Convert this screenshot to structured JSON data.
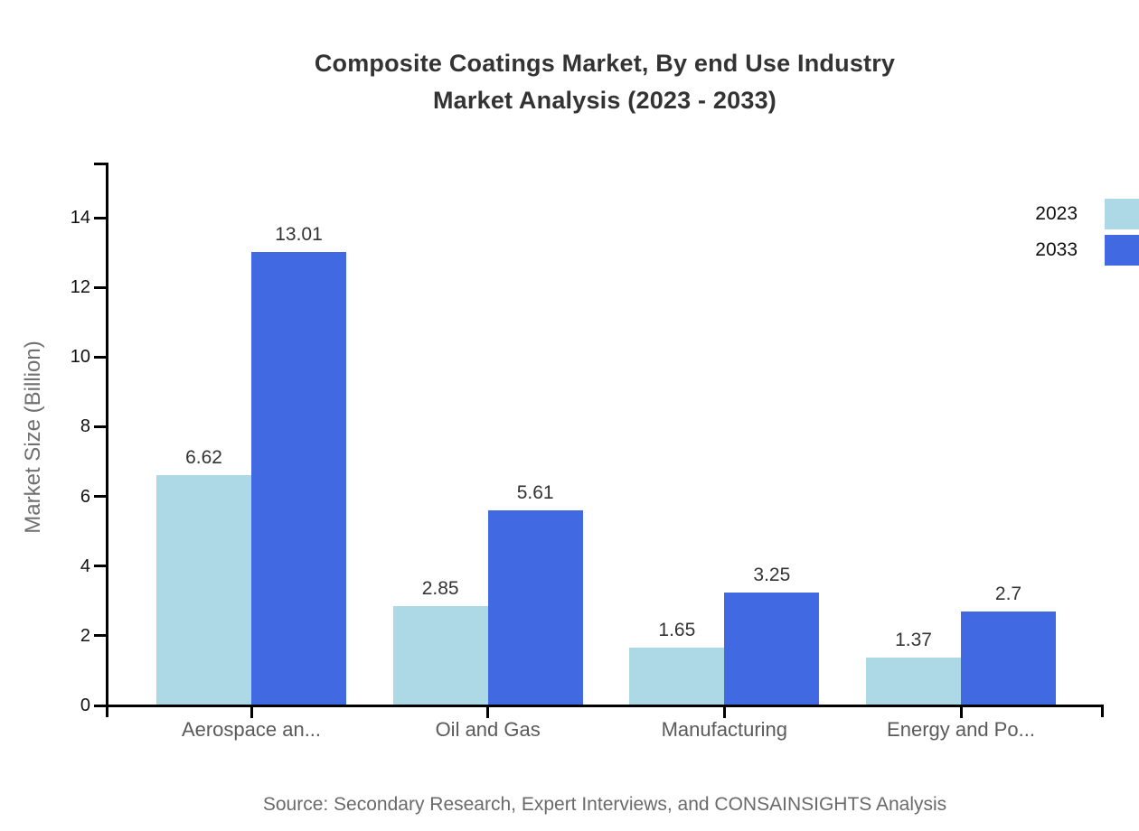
{
  "header": {
    "title_line1": "Composite Coatings Market, By end Use Industry",
    "title_line2": "Market Analysis (2023 - 2033)"
  },
  "source_note": "Source: Secondary Research, Expert Interviews, and CONSAINSIGHTS Analysis",
  "chart_data": {
    "type": "bar",
    "title": "Composite Coatings Market, By end Use Industry Market Analysis (2023 - 2033)",
    "categories": [
      "Aerospace an...",
      "Oil and Gas",
      "Manufacturing",
      "Energy and Po..."
    ],
    "series": [
      {
        "name": "2023",
        "color": "#ADD8E6",
        "values": [
          6.62,
          2.85,
          1.65,
          1.37
        ],
        "labels": [
          "6.62",
          "2.85",
          "1.65",
          "1.37"
        ]
      },
      {
        "name": "2033",
        "color": "#4169E1",
        "values": [
          13.01,
          5.61,
          3.25,
          2.7
        ],
        "labels": [
          "13.01",
          "5.61",
          "3.25",
          "2.7"
        ]
      }
    ],
    "xlabel": "",
    "ylabel": "Market Size (Billion)",
    "ylim": [
      0,
      15.6
    ],
    "yticks": [
      0,
      2,
      4,
      6,
      8,
      10,
      12,
      14
    ],
    "grid": false,
    "legend_position": "top-right",
    "value_labels": true
  },
  "colors": {
    "series_2023": "#ADD8E6",
    "series_2033": "#4169E1",
    "title_text": "#333333",
    "axis_line": "#000000",
    "y_tick_label": "#111111",
    "x_tick_label": "#5a5a5a",
    "axis_title": "#707070",
    "source_text": "#6a6a6a",
    "background": "#ffffff"
  }
}
